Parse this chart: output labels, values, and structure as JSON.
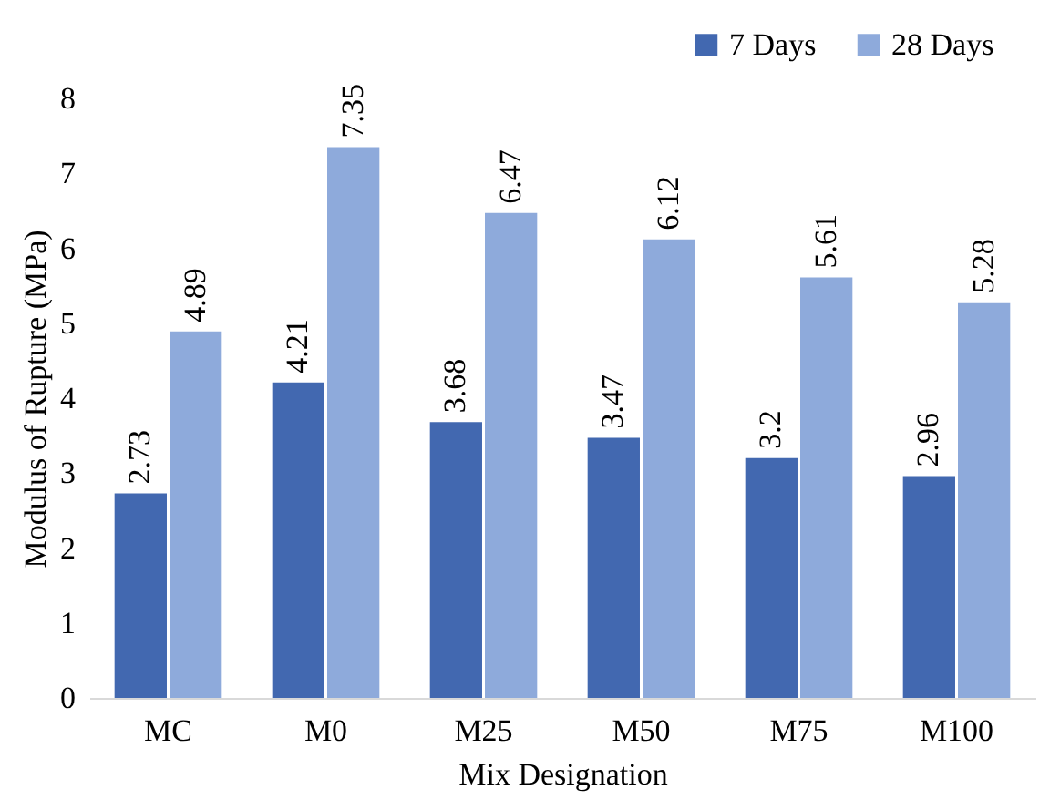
{
  "chart_data": {
    "type": "bar",
    "xlabel": "Mix Designation",
    "ylabel": "Modulus of Rupture (MPa)",
    "categories": [
      "MC",
      "M0",
      "M25",
      "M50",
      "M75",
      "M100"
    ],
    "series": [
      {
        "name": "7 Days",
        "color": "#4268b0",
        "values": [
          2.73,
          4.21,
          3.68,
          3.47,
          3.2,
          2.96
        ]
      },
      {
        "name": "28 Days",
        "color": "#8eaadb",
        "values": [
          4.89,
          7.35,
          6.47,
          6.12,
          5.61,
          5.28
        ]
      }
    ],
    "ylim": [
      0,
      8
    ],
    "yticks": [
      0,
      1,
      2,
      3,
      4,
      5,
      6,
      7,
      8
    ],
    "grid": false,
    "legend": "top right",
    "data_labels": true
  }
}
